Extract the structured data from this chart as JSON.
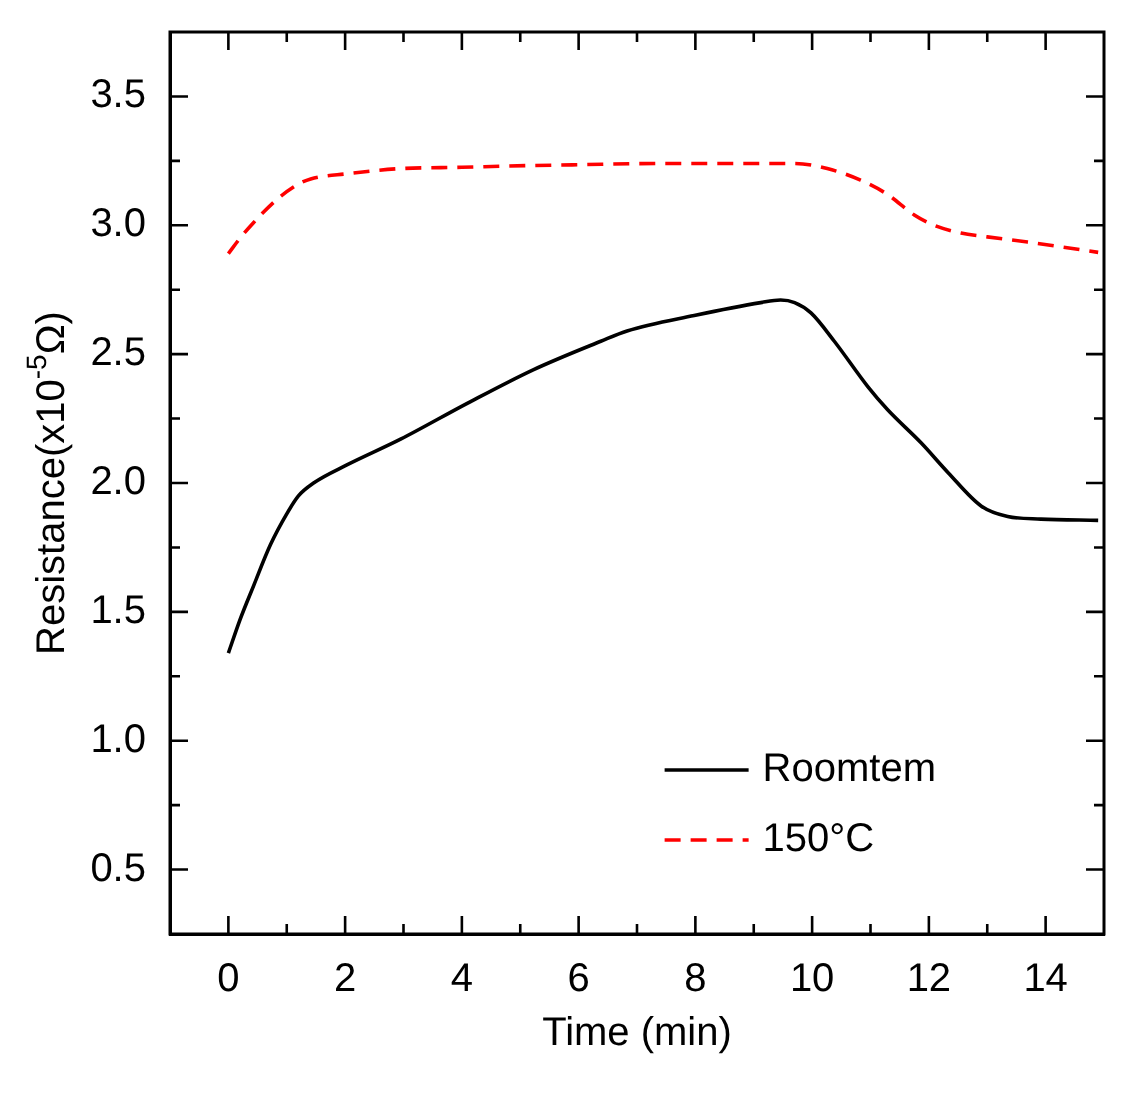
{
  "chart_data": {
    "type": "line",
    "xlabel": "Time (min)",
    "ylabel": "Resistance(x10$^{-5}$Ω)",
    "xlim": [
      -1,
      15
    ],
    "ylim": [
      0.25,
      3.75
    ],
    "xticks": [
      0,
      {
        "value": 1,
        "label": null
      },
      2,
      {
        "value": 3,
        "label": null
      },
      4,
      {
        "value": 5,
        "label": null
      },
      6,
      {
        "value": 7,
        "label": null
      },
      8,
      {
        "value": 9,
        "label": null
      },
      10,
      {
        "value": 11,
        "label": null
      },
      12,
      {
        "value": 13,
        "label": null
      },
      14
    ],
    "yticks": [
      0.5,
      {
        "value": 0.75,
        "label": null
      },
      {
        "value": 1,
        "label": "1.0"
      },
      {
        "value": 1.25,
        "label": null
      },
      1.5,
      {
        "value": 1.75,
        "label": null
      },
      {
        "value": 2,
        "label": "2.0"
      },
      {
        "value": 2.25,
        "label": null
      },
      2.5,
      {
        "value": 2.75,
        "label": null
      },
      {
        "value": 3,
        "label": "3.0"
      },
      {
        "value": 3.25,
        "label": null
      },
      3.5
    ],
    "legend": "bottom right",
    "marker": "none",
    "series": [
      {
        "name": "Roomtem",
        "color": "#000000",
        "line_style": "solid",
        "x": [
          0,
          0.2,
          0.43,
          0.72,
          1.0,
          1.2,
          1.46,
          2.03,
          2.95,
          4.1,
          5.23,
          6.38,
          6.83,
          7.98,
          9.12,
          9.46,
          9.7,
          9.98,
          10.38,
          10.95,
          11.29,
          11.87,
          12.33,
          12.9,
          13.35,
          13.92,
          14.9
        ],
        "values": [
          1.34,
          1.47,
          1.6,
          1.76,
          1.88,
          1.95,
          2.0,
          2.07,
          2.17,
          2.31,
          2.44,
          2.55,
          2.59,
          2.65,
          2.7,
          2.71,
          2.7,
          2.66,
          2.55,
          2.375,
          2.285,
          2.155,
          2.04,
          1.91,
          1.87,
          1.86,
          1.855
        ]
      },
      {
        "name": "150°C",
        "color": "#ff0000",
        "line_style": "dashed",
        "x": [
          0,
          0.2,
          0.43,
          0.83,
          1.2,
          1.41,
          2.03,
          2.95,
          4.0,
          4.8,
          6.0,
          7.4,
          8.5,
          9.69,
          10.26,
          10.83,
          11.29,
          11.75,
          12.09,
          12.55,
          13.0,
          13.69,
          14.3,
          14.9
        ],
        "values": [
          2.89,
          2.95,
          3.01,
          3.1,
          3.16,
          3.18,
          3.2,
          3.22,
          3.225,
          3.23,
          3.235,
          3.24,
          3.24,
          3.24,
          3.22,
          3.175,
          3.12,
          3.04,
          3.0,
          2.97,
          2.955,
          2.935,
          2.915,
          2.895
        ]
      }
    ]
  }
}
